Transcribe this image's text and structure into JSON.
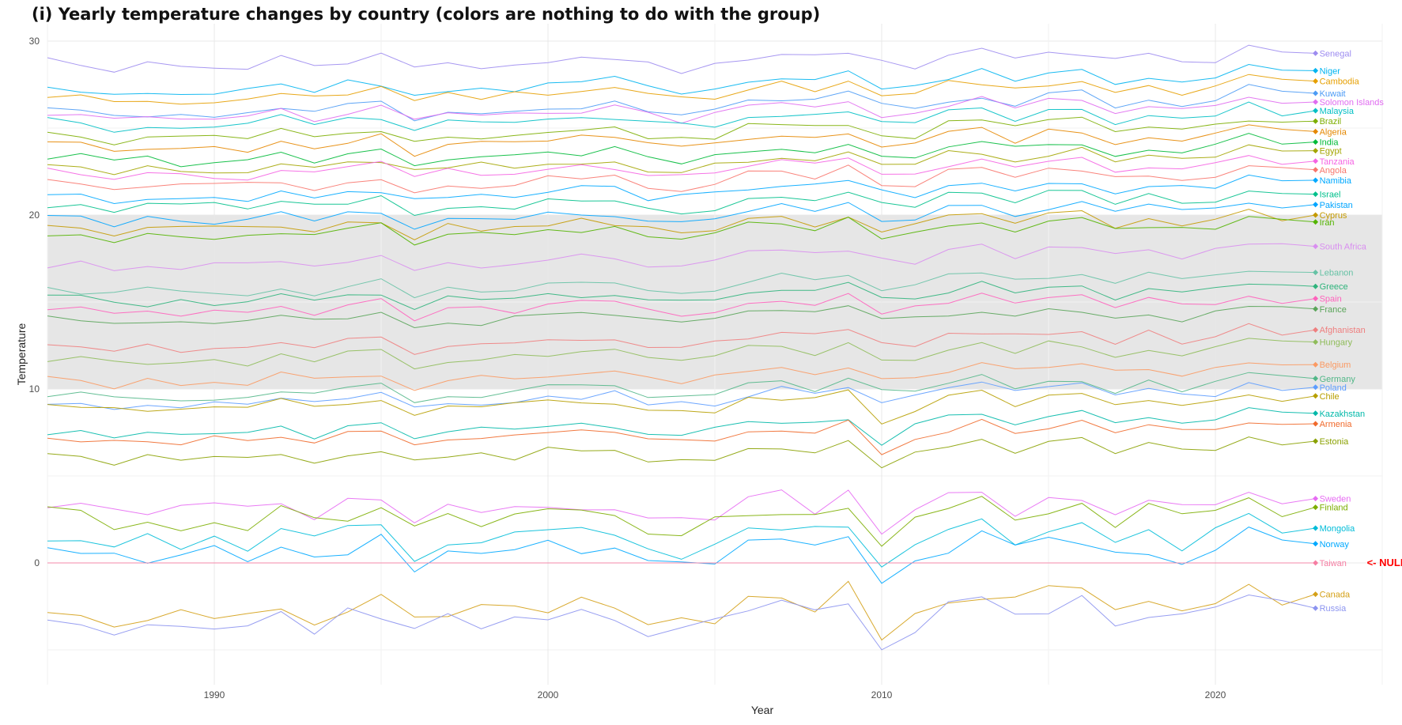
{
  "chart_data": {
    "type": "line",
    "title": "(i) Yearly temperature changes by country (colors are nothing to do with the group)",
    "xlabel": "Year",
    "ylabel": "Temperature",
    "xlim": [
      1985,
      2025
    ],
    "ylim": [
      -7,
      31
    ],
    "x_ticks": [
      1990,
      2000,
      2010,
      2020
    ],
    "y_ticks": [
      0,
      10,
      20,
      30
    ],
    "grid": true,
    "highlight_band": [
      10,
      20
    ],
    "annotation": "<- NULL",
    "annotation_target": "Taiwan",
    "series": [
      {
        "name": "Senegal",
        "color": "#9d8cf0",
        "end": 29.3
      },
      {
        "name": "Niger",
        "color": "#00b4f0",
        "end": 28.3
      },
      {
        "name": "Cambodia",
        "color": "#e69f00",
        "end": 27.7
      },
      {
        "name": "Kuwait",
        "color": "#4c9bf5",
        "end": 27.0
      },
      {
        "name": "Solomon Islands",
        "color": "#e06cf0",
        "end": 26.5
      },
      {
        "name": "Malaysia",
        "color": "#00bfc4",
        "end": 26.0
      },
      {
        "name": "Brazil",
        "color": "#7cae00",
        "end": 25.4
      },
      {
        "name": "Algeria",
        "color": "#e58700",
        "end": 24.8
      },
      {
        "name": "India",
        "color": "#00ba38",
        "end": 24.2
      },
      {
        "name": "Egypt",
        "color": "#a3a500",
        "end": 23.7
      },
      {
        "name": "Tanzania",
        "color": "#f564e3",
        "end": 23.1
      },
      {
        "name": "Angola",
        "color": "#f8766d",
        "end": 22.6
      },
      {
        "name": "Namibia",
        "color": "#00a9ff",
        "end": 22.0
      },
      {
        "name": "Israel",
        "color": "#00c08b",
        "end": 21.2
      },
      {
        "name": "Pakistan",
        "color": "#00a5ff",
        "end": 20.6
      },
      {
        "name": "Cyprus",
        "color": "#c49a00",
        "end": 20.0
      },
      {
        "name": "Iran",
        "color": "#53b400",
        "end": 19.6
      },
      {
        "name": "South Africa",
        "color": "#d98ef0",
        "end": 18.2
      },
      {
        "name": "Lebanon",
        "color": "#66c2a5",
        "end": 16.7
      },
      {
        "name": "Greece",
        "color": "#2fb47c",
        "end": 15.9
      },
      {
        "name": "Spain",
        "color": "#ff62bc",
        "end": 15.2
      },
      {
        "name": "France",
        "color": "#5aa55a",
        "end": 14.6
      },
      {
        "name": "Afghanistan",
        "color": "#ef7f7f",
        "end": 13.4
      },
      {
        "name": "Hungary",
        "color": "#8fbc5a",
        "end": 12.7
      },
      {
        "name": "Belgium",
        "color": "#fb9a63",
        "end": 11.4
      },
      {
        "name": "Germany",
        "color": "#52b788",
        "end": 10.6
      },
      {
        "name": "Poland",
        "color": "#5c9cff",
        "end": 10.1
      },
      {
        "name": "Chile",
        "color": "#b79f00",
        "end": 9.6
      },
      {
        "name": "Kazakhstan",
        "color": "#00b8a9",
        "end": 8.6
      },
      {
        "name": "Armenia",
        "color": "#f06a2c",
        "end": 8.0
      },
      {
        "name": "Estonia",
        "color": "#8aa100",
        "end": 7.0
      },
      {
        "name": "Sweden",
        "color": "#e76bf3",
        "end": 3.7
      },
      {
        "name": "Finland",
        "color": "#7cae00",
        "end": 3.2
      },
      {
        "name": "Mongolia",
        "color": "#00bcd8",
        "end": 2.0
      },
      {
        "name": "Norway",
        "color": "#00a9ff",
        "end": 1.1
      },
      {
        "name": "Taiwan",
        "color": "#f67ea3",
        "end": 0.0
      },
      {
        "name": "Canada",
        "color": "#d4a017",
        "end": -1.8
      },
      {
        "name": "Russia",
        "color": "#8c94f0",
        "end": -2.6
      }
    ]
  }
}
